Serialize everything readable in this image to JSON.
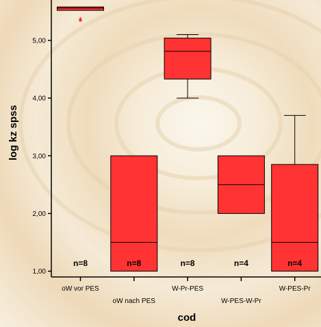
{
  "chart_data": {
    "type": "boxplot",
    "xlabel": "cod",
    "ylabel": "log kz spss",
    "ylim": [
      0.9,
      5.7
    ],
    "yticks": [
      "1,00",
      "2,00",
      "3,00",
      "4,00",
      "5,00"
    ],
    "ytick_values": [
      1,
      2,
      3,
      4,
      5
    ],
    "categories": [
      "oW vor PES",
      "oW nach PES",
      "W-Pr-PES",
      "W-PES-W-Pr",
      "W-PES-Pr"
    ],
    "boxes": [
      {
        "category": "oW vor PES",
        "min": 5.52,
        "q1": 5.52,
        "median": 5.56,
        "q3": 5.58,
        "max": 5.58,
        "outliers": [
          5.36
        ],
        "n_label": "n=8"
      },
      {
        "category": "oW nach PES",
        "min": 1.0,
        "q1": 1.0,
        "median": 1.5,
        "q3": 3.0,
        "max": 3.0,
        "outliers": [],
        "n_label": "n=8"
      },
      {
        "category": "W-Pr-PES",
        "min": 4.0,
        "q1": 4.33,
        "median": 4.81,
        "q3": 5.04,
        "max": 5.1,
        "outliers": [],
        "n_label": "n=8"
      },
      {
        "category": "W-PES-W-Pr",
        "min": 2.0,
        "q1": 2.0,
        "median": 2.5,
        "q3": 3.0,
        "max": 3.0,
        "outliers": [],
        "n_label": "n=4"
      },
      {
        "category": "W-PES-Pr",
        "min": 1.0,
        "q1": 1.0,
        "median": 1.5,
        "q3": 2.85,
        "max": 3.7,
        "outliers": [],
        "n_label": "n=4"
      }
    ],
    "colors": {
      "box": "#ff3333",
      "stroke": "#000000"
    }
  }
}
